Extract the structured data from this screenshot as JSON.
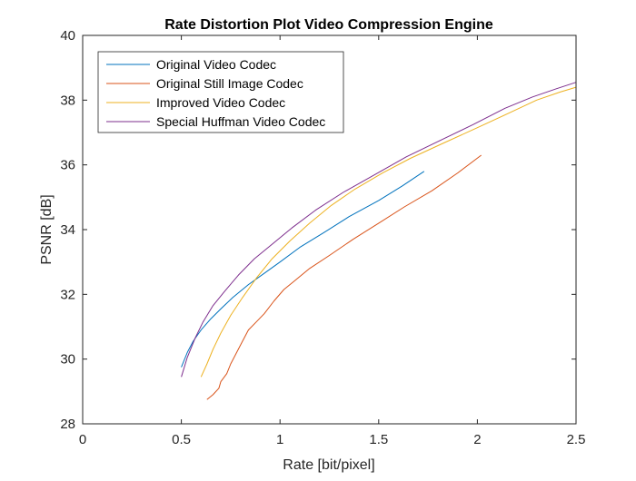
{
  "chart_data": {
    "type": "line",
    "title": "Rate Distortion Plot Video Compression Engine",
    "xlabel": "Rate [bit/pixel]",
    "ylabel": "PSNR [dB]",
    "xlim": [
      0,
      2.5
    ],
    "ylim": [
      28,
      40
    ],
    "xticks": [
      0,
      0.5,
      1,
      1.5,
      2,
      2.5
    ],
    "xtick_labels": [
      "0",
      "0.5",
      "1",
      "1.5",
      "2",
      "2.5"
    ],
    "yticks": [
      28,
      30,
      32,
      34,
      36,
      38,
      40
    ],
    "ytick_labels": [
      "28",
      "30",
      "32",
      "34",
      "36",
      "38",
      "40"
    ],
    "grid": false,
    "legend_position": "top-left",
    "series": [
      {
        "name": "Original Video Codec",
        "color": "#0072BD",
        "x": [
          0.5,
          0.53,
          0.56,
          0.6,
          0.65,
          0.7,
          0.76,
          0.84,
          0.92,
          1.0,
          1.1,
          1.22,
          1.35,
          1.5,
          1.62,
          1.73
        ],
        "y": [
          29.75,
          30.2,
          30.55,
          30.9,
          31.25,
          31.55,
          31.9,
          32.3,
          32.65,
          33.0,
          33.45,
          33.9,
          34.4,
          34.9,
          35.35,
          35.8
        ]
      },
      {
        "name": "Original Still Image Codec",
        "color": "#D95319",
        "x": [
          0.63,
          0.66,
          0.69,
          0.7,
          0.73,
          0.75,
          0.78,
          0.81,
          0.84,
          0.88,
          0.92,
          0.97,
          1.02,
          1.07,
          1.15,
          1.25,
          1.37,
          1.5,
          1.63,
          1.77,
          1.9,
          2.02
        ],
        "y": [
          28.75,
          28.9,
          29.1,
          29.3,
          29.55,
          29.85,
          30.2,
          30.55,
          30.9,
          31.15,
          31.4,
          31.8,
          32.15,
          32.4,
          32.8,
          33.2,
          33.7,
          34.2,
          34.7,
          35.2,
          35.75,
          36.3
        ]
      },
      {
        "name": "Improved Video Codec",
        "color": "#EDB120",
        "x": [
          0.6,
          0.63,
          0.66,
          0.7,
          0.75,
          0.81,
          0.88,
          0.96,
          1.05,
          1.15,
          1.26,
          1.38,
          1.52,
          1.66,
          1.82,
          2.0,
          2.16,
          2.3,
          2.42,
          2.5
        ],
        "y": [
          29.45,
          29.85,
          30.3,
          30.8,
          31.35,
          31.9,
          32.5,
          33.1,
          33.65,
          34.2,
          34.75,
          35.25,
          35.75,
          36.2,
          36.65,
          37.15,
          37.6,
          38.0,
          38.25,
          38.4
        ]
      },
      {
        "name": "Special Huffman Video Codec",
        "color": "#7E2F8E",
        "x": [
          0.5,
          0.53,
          0.57,
          0.61,
          0.66,
          0.72,
          0.79,
          0.87,
          0.96,
          1.06,
          1.18,
          1.32,
          1.48,
          1.64,
          1.81,
          1.98,
          2.14,
          2.28,
          2.4,
          2.5
        ],
        "y": [
          29.45,
          30.05,
          30.65,
          31.15,
          31.65,
          32.1,
          32.6,
          33.1,
          33.55,
          34.05,
          34.6,
          35.15,
          35.7,
          36.25,
          36.75,
          37.25,
          37.75,
          38.1,
          38.35,
          38.55
        ]
      }
    ]
  }
}
